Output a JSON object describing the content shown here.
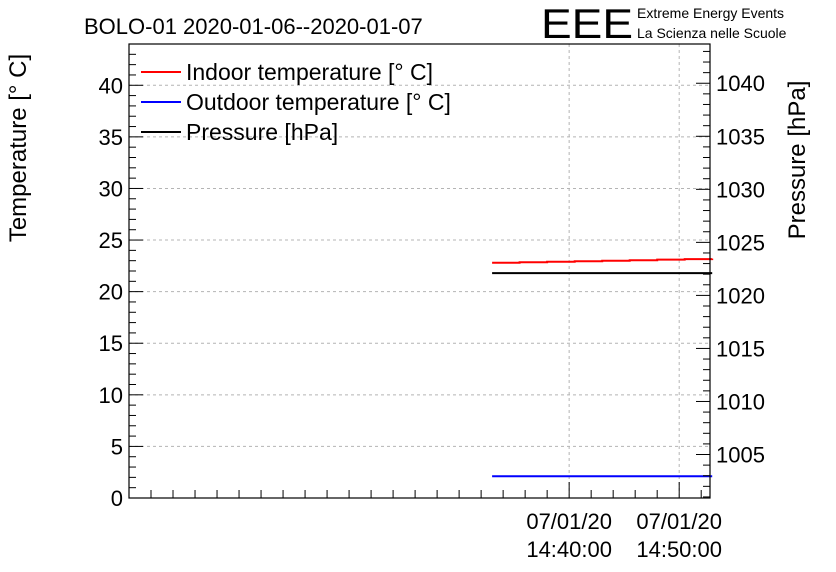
{
  "header": {
    "title": "BOLO-01 2020-01-06--2020-01-07"
  },
  "logo": {
    "letters": "EEE",
    "line1": "Extreme Energy Events",
    "line2": "La Scienza nelle Scuole",
    "color": "#1010e6"
  },
  "chart_data": {
    "type": "line",
    "title": "BOLO-01 2020-01-06--2020-01-07",
    "ylabel": "Temperature [° C]",
    "y2label": "Pressure [hPa]",
    "ylim": [
      0,
      44
    ],
    "y2lim": [
      1000.9,
      1043.7
    ],
    "yticks": [
      "0",
      "5",
      "10",
      "15",
      "20",
      "25",
      "30",
      "35",
      "40"
    ],
    "y2ticks": [
      "1005",
      "1010",
      "1015",
      "1020",
      "1025",
      "1030",
      "1035",
      "1040"
    ],
    "xlim_minutes": [
      14.0,
      14.88
    ],
    "xticks": [
      {
        "date": "07/01/20",
        "time": "14:40:00"
      },
      {
        "date": "07/01/20",
        "time": "14:50:00"
      }
    ],
    "grid": true,
    "legend_position": "top-left",
    "series": [
      {
        "name": "Indoor temperature [° C]",
        "color": "#ff0000",
        "axis": "left",
        "x": [
          "14:33:00",
          "14:35:30",
          "14:38:00",
          "14:40:30",
          "14:43:00",
          "14:45:30",
          "14:48:00",
          "14:50:30",
          "14:53:00"
        ],
        "values": [
          22.8,
          22.85,
          22.9,
          22.95,
          23.0,
          23.05,
          23.1,
          23.15,
          23.2
        ]
      },
      {
        "name": "Outdoor temperature [° C]",
        "color": "#0000ff",
        "axis": "left",
        "x": [
          "14:33:00",
          "14:53:00"
        ],
        "values": [
          2.1,
          2.1
        ]
      },
      {
        "name": "Pressure [hPa]",
        "color": "#000000",
        "axis": "right",
        "x": [
          "14:33:00",
          "14:53:00"
        ],
        "values": [
          1022.1,
          1022.1
        ]
      }
    ]
  }
}
